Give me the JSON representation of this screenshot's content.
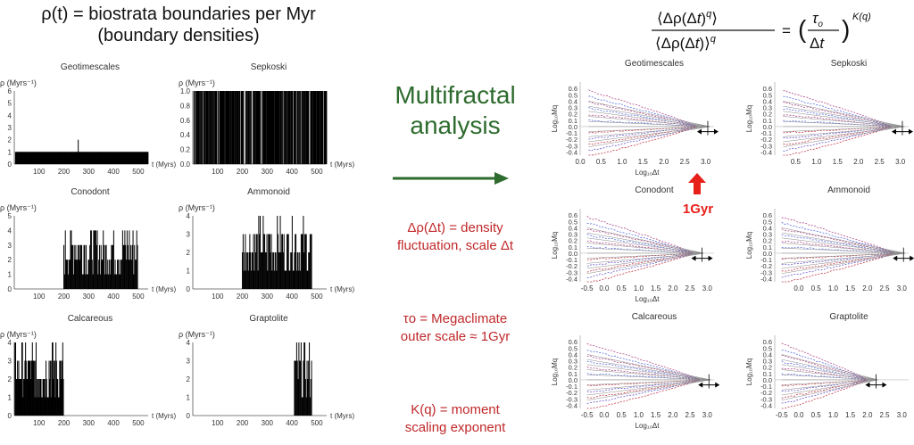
{
  "left_title": {
    "line1": "ρ(t) = biostrata boundaries per Myr",
    "line2": "(boundary densities)"
  },
  "middle": {
    "headline_line1": "Multifractal",
    "headline_line2": "analysis",
    "note1": {
      "line1": "Δρ(Δt) = density",
      "line2": "fluctuation, scale Δt"
    },
    "note2": {
      "line1": "τo = Megaclimate",
      "line2": "outer scale ≈ 1Gyr"
    },
    "note3": {
      "line1": "K(q) = moment",
      "line2": "scaling exponent"
    },
    "arrow_color": "#2e6b2e"
  },
  "formula": {
    "numerator": "⟨Δρ(Δt)q⟩",
    "denominator": "⟨Δρ(Δt)⟩q",
    "rhs": "(τo/Δt)K(q)"
  },
  "annotation": {
    "label": "1Gyr",
    "color": "#e8201a"
  },
  "chart_data": [
    {
      "type": "bar",
      "title": "Geotimescales",
      "ylabel": "ρ (Myrs⁻¹)",
      "xlabel": "t (Myrs)",
      "yticks": [
        "0",
        "1",
        "2",
        "3",
        "4",
        "5",
        "6"
      ],
      "xticks": [
        "100",
        "200",
        "300",
        "400",
        "500"
      ],
      "ylim": [
        0,
        6
      ],
      "xlim": [
        0,
        540
      ],
      "description_values": {
        "baseline": 1,
        "spikes": [
          [
            260,
            2
          ]
        ]
      }
    },
    {
      "type": "bar",
      "title": "Sepkoski",
      "ylabel": "ρ (Myrs⁻¹)",
      "xlabel": "t (Myrs)",
      "yticks": [
        "0.0",
        "0.2",
        "0.4",
        "0.6",
        "0.8",
        "1.0"
      ],
      "xticks": [
        "100",
        "200",
        "300",
        "400",
        "500"
      ],
      "ylim": [
        0,
        1
      ],
      "xlim": [
        0,
        540
      ]
    },
    {
      "type": "bar",
      "title": "Conodont",
      "ylabel": "ρ (Myrs⁻¹)",
      "xlabel": "t (Myrs)",
      "yticks": [
        "0",
        "1",
        "2",
        "3",
        "4",
        "5"
      ],
      "xticks": [
        "100",
        "200",
        "300",
        "400",
        "500"
      ],
      "ylim": [
        0,
        5
      ],
      "xlim": [
        0,
        540
      ]
    },
    {
      "type": "bar",
      "title": "Ammonoid",
      "ylabel": "ρ (Myrs⁻¹)",
      "xlabel": "t (Myrs)",
      "yticks": [
        "0",
        "1",
        "2",
        "3",
        "4"
      ],
      "xticks": [
        "100",
        "200",
        "300",
        "400",
        "500"
      ],
      "ylim": [
        0,
        4
      ],
      "xlim": [
        0,
        540
      ]
    },
    {
      "type": "bar",
      "title": "Calcareous",
      "ylabel": "ρ (Myrs⁻¹)",
      "xlabel": "t (Myrs)",
      "yticks": [
        "0",
        "1",
        "2",
        "3",
        "4"
      ],
      "xticks": [
        "100",
        "200",
        "300",
        "400",
        "500"
      ],
      "ylim": [
        0,
        4
      ],
      "xlim": [
        0,
        540
      ]
    },
    {
      "type": "bar",
      "title": "Graptolite",
      "ylabel": "ρ (Myrs⁻¹)",
      "xlabel": "t (Myrs)",
      "yticks": [
        "0",
        "1",
        "2",
        "3",
        "4"
      ],
      "xticks": [
        "100",
        "200",
        "300",
        "400",
        "500"
      ],
      "ylim": [
        0,
        4
      ],
      "xlim": [
        0,
        540
      ]
    },
    {
      "type": "line",
      "title": "Geotimescales",
      "ylabel": "Log₁₀Mq",
      "xlabel": "Log₁₀Δt",
      "yticks": [
        "-0.4",
        "-0.3",
        "-0.2",
        "-0.1",
        "0.0",
        "0.1",
        "0.2",
        "0.3",
        "0.4",
        "0.5",
        "0.6"
      ],
      "xticks": [
        "0.0",
        "0.5",
        "1.0",
        "1.5",
        "2.0",
        "2.5",
        "3.0"
      ],
      "xlim": [
        0,
        3.2
      ],
      "ylim": [
        -0.45,
        0.7
      ]
    },
    {
      "type": "line",
      "title": "Sepkoski",
      "ylabel": "Log₁₀Mq",
      "xlabel": "",
      "yticks": [
        "-0.4",
        "-0.3",
        "-0.2",
        "-0.1",
        "0.0",
        "0.1",
        "0.2",
        "0.3",
        "0.4",
        "0.5",
        "0.6"
      ],
      "xticks": [
        "0.5",
        "1.0",
        "1.5",
        "2.0",
        "2.5",
        "3.0"
      ],
      "xlim": [
        0,
        3.2
      ],
      "ylim": [
        -0.45,
        0.7
      ]
    },
    {
      "type": "line",
      "title": "Conodont",
      "ylabel": "Log₁₀Mq",
      "xlabel": "Log₁₀Δt",
      "yticks": [
        "-0.4",
        "-0.3",
        "-0.2",
        "-0.1",
        "0.0",
        "0.1",
        "0.2",
        "0.3",
        "0.4",
        "0.5",
        "0.6"
      ],
      "xticks": [
        "-0.5",
        "0.0",
        "0.5",
        "1.0",
        "1.5",
        "2.0",
        "2.5",
        "3.0"
      ],
      "xlim": [
        -0.7,
        3.2
      ],
      "ylim": [
        -0.45,
        0.7
      ]
    },
    {
      "type": "line",
      "title": "Ammonoid",
      "ylabel": "Log₁₀Mq",
      "xlabel": "",
      "yticks": [
        "-0.4",
        "-0.3",
        "-0.2",
        "-0.1",
        "0.0",
        "0.1",
        "0.2",
        "0.3",
        "0.4",
        "0.5",
        "0.6"
      ],
      "xticks": [
        "0.0",
        "0.5",
        "1.0",
        "1.5",
        "2.0",
        "2.5",
        "3.0"
      ],
      "xlim": [
        -0.7,
        3.2
      ],
      "ylim": [
        -0.45,
        0.7
      ]
    },
    {
      "type": "line",
      "title": "Calcareous",
      "ylabel": "Log₁₀Mq",
      "xlabel": "Log₁₀Δt",
      "yticks": [
        "-0.4",
        "-0.3",
        "-0.2",
        "-0.1",
        "0.0",
        "0.1",
        "0.2",
        "0.3",
        "0.4",
        "0.5",
        "0.6"
      ],
      "xticks": [
        "-0.5",
        "0.0",
        "0.5",
        "1.0",
        "1.5",
        "2.0",
        "2.5",
        "3.0"
      ],
      "xlim": [
        -0.7,
        3.2
      ],
      "ylim": [
        -0.45,
        0.7
      ]
    },
    {
      "type": "line",
      "title": "Graptolite",
      "ylabel": "Log₁₀Mq",
      "xlabel": "",
      "yticks": [
        "-0.4",
        "-0.3",
        "-0.2",
        "-0.1",
        "0.0",
        "0.1",
        "0.2",
        "0.3",
        "0.4",
        "0.5",
        "0.6"
      ],
      "xticks": [
        "-0.5",
        "0.0",
        "0.5",
        "1.0",
        "1.5",
        "2.0",
        "2.5",
        "3.0"
      ],
      "xlim": [
        -0.7,
        3.2
      ],
      "ylim": [
        -0.45,
        0.7
      ]
    }
  ]
}
